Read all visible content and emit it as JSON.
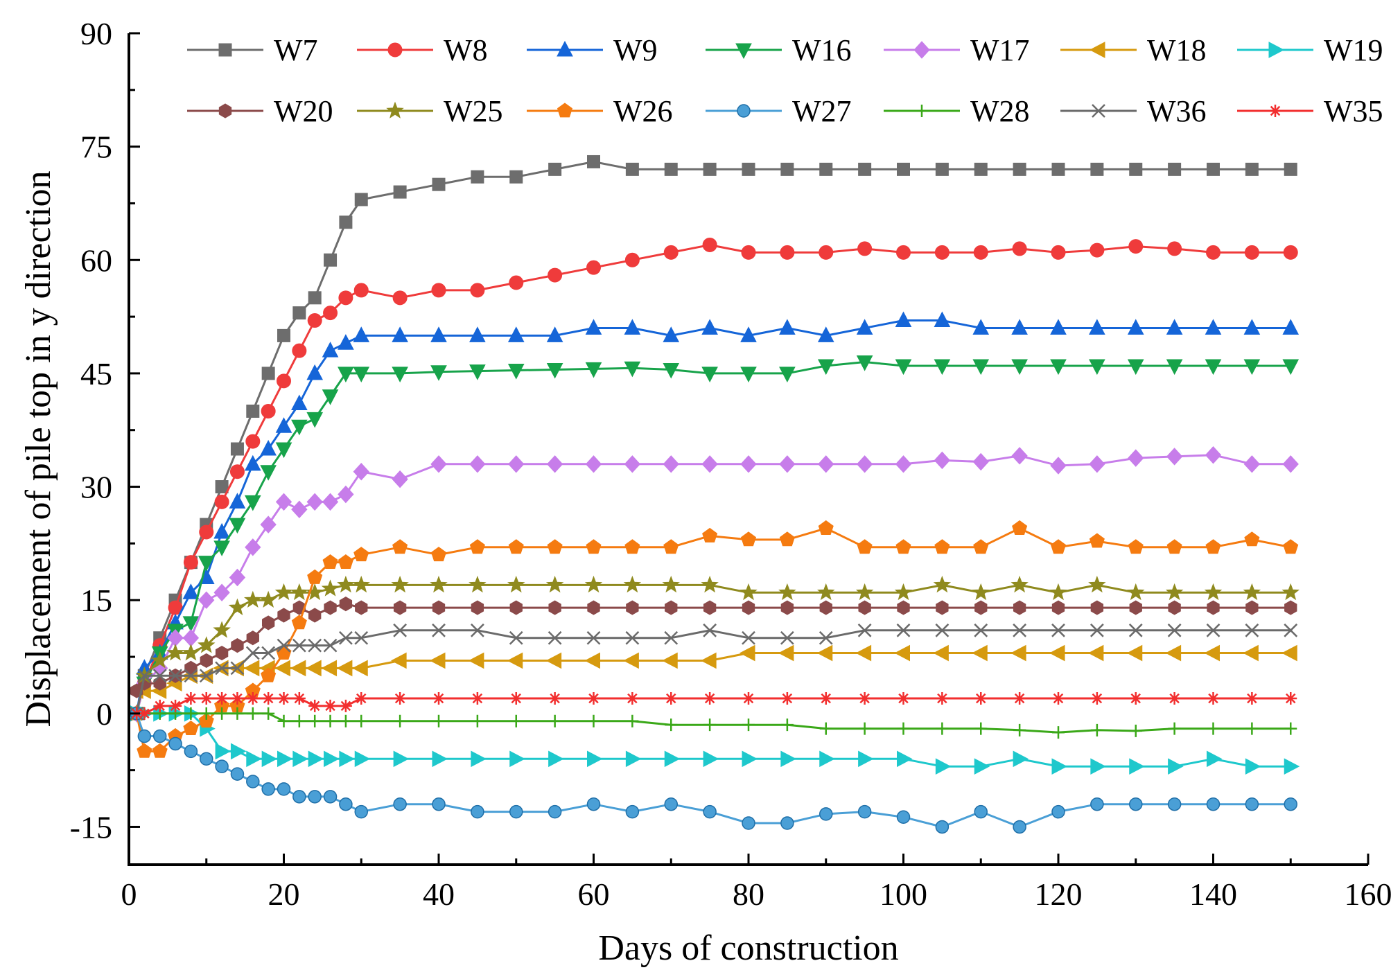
{
  "chart_data": {
    "type": "line",
    "title": "",
    "xlabel": "Days of construction",
    "ylabel": "Displacement of pile top in y direction",
    "xlim": [
      0,
      160
    ],
    "ylim": [
      -20,
      90
    ],
    "xticks": [
      0,
      20,
      40,
      60,
      80,
      100,
      120,
      140,
      160
    ],
    "yticks": [
      -15,
      0,
      15,
      30,
      45,
      60,
      75,
      90
    ],
    "xtick_labels": [
      "0",
      "20",
      "40",
      "60",
      "80",
      "100",
      "120",
      "140",
      "160"
    ],
    "ytick_labels": [
      "-15",
      "0",
      "15",
      "30",
      "45",
      "60",
      "75",
      "90"
    ],
    "grid": false,
    "legend_position": "top",
    "series": [
      {
        "name": "W7",
        "color": "#6d6d6d",
        "marker": "square",
        "x": [
          1,
          2,
          4,
          6,
          8,
          10,
          12,
          14,
          16,
          18,
          20,
          22,
          24,
          26,
          28,
          30,
          35,
          40,
          45,
          50,
          55,
          60,
          65,
          70,
          75,
          80,
          85,
          90,
          95,
          100,
          105,
          110,
          115,
          120,
          125,
          130,
          135,
          140,
          145,
          150
        ],
        "y": [
          0,
          5,
          10,
          15,
          20,
          25,
          30,
          35,
          40,
          45,
          50,
          53,
          55,
          60,
          65,
          68,
          69,
          70,
          71,
          71,
          72,
          73,
          72,
          72,
          72,
          72,
          72,
          72,
          72,
          72,
          72,
          72,
          72,
          72,
          72,
          72,
          72,
          72,
          72,
          72
        ]
      },
      {
        "name": "W8",
        "color": "#ef3b3b",
        "marker": "circle",
        "x": [
          1,
          2,
          4,
          6,
          8,
          10,
          12,
          14,
          16,
          18,
          20,
          22,
          24,
          26,
          28,
          30,
          35,
          40,
          45,
          50,
          55,
          60,
          65,
          70,
          75,
          80,
          85,
          90,
          95,
          100,
          105,
          110,
          115,
          120,
          125,
          130,
          135,
          140,
          145,
          150
        ],
        "y": [
          0,
          4,
          9,
          14,
          20,
          24,
          28,
          32,
          36,
          40,
          44,
          48,
          52,
          53,
          55,
          56,
          55,
          56,
          56,
          57,
          58,
          59,
          60,
          61,
          62,
          61,
          61,
          61,
          61.5,
          61,
          61,
          61,
          61.5,
          61,
          61.3,
          61.8,
          61.5,
          61,
          61,
          61
        ]
      },
      {
        "name": "W9",
        "color": "#1565d8",
        "marker": "triangle-up",
        "x": [
          1,
          2,
          4,
          6,
          8,
          10,
          12,
          14,
          16,
          18,
          20,
          22,
          24,
          26,
          28,
          30,
          35,
          40,
          45,
          50,
          55,
          60,
          65,
          70,
          75,
          80,
          85,
          90,
          95,
          100,
          105,
          110,
          115,
          120,
          125,
          130,
          135,
          140,
          145,
          150
        ],
        "y": [
          0,
          6,
          8,
          12,
          16,
          18,
          24,
          28,
          33,
          35,
          38,
          41,
          45,
          48,
          49,
          50,
          50,
          50,
          50,
          50,
          50,
          51,
          51,
          50,
          51,
          50,
          51,
          50,
          51,
          52,
          52,
          51,
          51,
          51,
          51,
          51,
          51,
          51,
          51,
          51
        ]
      },
      {
        "name": "W16",
        "color": "#17a34a",
        "marker": "triangle-down",
        "x": [
          1,
          2,
          4,
          6,
          8,
          10,
          12,
          14,
          16,
          18,
          20,
          22,
          24,
          26,
          28,
          30,
          35,
          40,
          45,
          50,
          55,
          60,
          65,
          70,
          75,
          80,
          85,
          90,
          95,
          100,
          105,
          110,
          115,
          120,
          125,
          130,
          135,
          140,
          145,
          150
        ],
        "y": [
          0,
          4,
          8,
          11,
          12,
          20,
          22,
          25,
          28,
          32,
          35,
          38,
          39,
          42,
          45,
          45,
          45,
          45.2,
          45.3,
          45.4,
          45.5,
          45.6,
          45.7,
          45.5,
          45,
          45,
          45,
          46,
          46.5,
          46,
          46,
          46,
          46,
          46,
          46,
          46,
          46,
          46,
          46,
          46
        ]
      },
      {
        "name": "W17",
        "color": "#c77dea",
        "marker": "diamond",
        "x": [
          1,
          2,
          4,
          6,
          8,
          10,
          12,
          14,
          16,
          18,
          20,
          22,
          24,
          26,
          28,
          30,
          35,
          40,
          45,
          50,
          55,
          60,
          65,
          70,
          75,
          80,
          85,
          90,
          95,
          100,
          105,
          110,
          115,
          120,
          125,
          130,
          135,
          140,
          145,
          150
        ],
        "y": [
          0,
          4,
          6,
          10,
          10,
          15,
          16,
          18,
          22,
          25,
          28,
          27,
          28,
          28,
          29,
          32,
          31,
          33,
          33,
          33,
          33,
          33,
          33,
          33,
          33,
          33,
          33,
          33,
          33,
          33,
          33.5,
          33.3,
          34.1,
          32.8,
          33,
          33.8,
          34,
          34.2,
          33,
          33
        ]
      },
      {
        "name": "W18",
        "color": "#d69a0f",
        "marker": "triangle-left",
        "x": [
          1,
          2,
          4,
          6,
          8,
          10,
          12,
          14,
          16,
          18,
          20,
          22,
          24,
          26,
          28,
          30,
          35,
          40,
          45,
          50,
          55,
          60,
          65,
          70,
          75,
          80,
          85,
          90,
          95,
          100,
          105,
          110,
          115,
          120,
          125,
          130,
          135,
          140,
          145,
          150
        ],
        "y": [
          3,
          3,
          3,
          4,
          5,
          5,
          6,
          6,
          6,
          6,
          6,
          6,
          6,
          6,
          6,
          6,
          7,
          7,
          7,
          7,
          7,
          7,
          7,
          7,
          7,
          8,
          8,
          8,
          8,
          8,
          8,
          8,
          8,
          8,
          8,
          8,
          8,
          8,
          8,
          8
        ]
      },
      {
        "name": "W19",
        "color": "#1ec8cc",
        "marker": "triangle-right",
        "x": [
          1,
          2,
          4,
          6,
          8,
          10,
          12,
          14,
          16,
          18,
          20,
          22,
          24,
          26,
          28,
          30,
          35,
          40,
          45,
          50,
          55,
          60,
          65,
          70,
          75,
          80,
          85,
          90,
          95,
          100,
          105,
          110,
          115,
          120,
          125,
          130,
          135,
          140,
          145,
          150
        ],
        "y": [
          0,
          0,
          0,
          0,
          0,
          -2,
          -5,
          -5,
          -6,
          -6,
          -6,
          -6,
          -6,
          -6,
          -6,
          -6,
          -6,
          -6,
          -6,
          -6,
          -6,
          -6,
          -6,
          -6,
          -6,
          -6,
          -6,
          -6,
          -6,
          -6,
          -7,
          -7,
          -6,
          -7,
          -7,
          -7,
          -7,
          -6,
          -7,
          -7
        ]
      },
      {
        "name": "W20",
        "color": "#8b4a4a",
        "marker": "hexagon",
        "x": [
          1,
          2,
          4,
          6,
          8,
          10,
          12,
          14,
          16,
          18,
          20,
          22,
          24,
          26,
          28,
          30,
          35,
          40,
          45,
          50,
          55,
          60,
          65,
          70,
          75,
          80,
          85,
          90,
          95,
          100,
          105,
          110,
          115,
          120,
          125,
          130,
          135,
          140,
          145,
          150
        ],
        "y": [
          3,
          4,
          4,
          5,
          6,
          7,
          8,
          9,
          10,
          12,
          13,
          14,
          13,
          14,
          14.5,
          14,
          14,
          14,
          14,
          14,
          14,
          14,
          14,
          14,
          14,
          14,
          14,
          14,
          14,
          14,
          14,
          14,
          14,
          14,
          14,
          14,
          14,
          14,
          14,
          14
        ]
      },
      {
        "name": "W25",
        "color": "#8f8a1e",
        "marker": "star",
        "x": [
          1,
          2,
          4,
          6,
          8,
          10,
          12,
          14,
          16,
          18,
          20,
          22,
          24,
          26,
          28,
          30,
          35,
          40,
          45,
          50,
          55,
          60,
          65,
          70,
          75,
          80,
          85,
          90,
          95,
          100,
          105,
          110,
          115,
          120,
          125,
          130,
          135,
          140,
          145,
          150
        ],
        "y": [
          0,
          5,
          7,
          8,
          8,
          9,
          11,
          14,
          15,
          15,
          16,
          16,
          16,
          16.5,
          17,
          17,
          17,
          17,
          17,
          17,
          17,
          17,
          17,
          17,
          17,
          16,
          16,
          16,
          16,
          16,
          17,
          16,
          17,
          16,
          17,
          16,
          16,
          16,
          16,
          16
        ]
      },
      {
        "name": "W26",
        "color": "#f57b10",
        "marker": "pentagon",
        "x": [
          1,
          2,
          4,
          6,
          8,
          10,
          12,
          14,
          16,
          18,
          20,
          22,
          24,
          26,
          28,
          30,
          35,
          40,
          45,
          50,
          55,
          60,
          65,
          70,
          75,
          80,
          85,
          90,
          95,
          100,
          105,
          110,
          115,
          120,
          125,
          130,
          135,
          140,
          145,
          150
        ],
        "y": [
          0,
          -5,
          -5,
          -3,
          -2,
          -1,
          1,
          1,
          3,
          5,
          8,
          12,
          18,
          20,
          20,
          21,
          22,
          21,
          22,
          22,
          22,
          22,
          22,
          22,
          23.5,
          23,
          23,
          24.5,
          22,
          22,
          22,
          22,
          24.5,
          22,
          22.8,
          22,
          22,
          22,
          23,
          22
        ]
      },
      {
        "name": "W27",
        "color": "#4a9fd6",
        "marker": "sphere",
        "x": [
          1,
          2,
          4,
          6,
          8,
          10,
          12,
          14,
          16,
          18,
          20,
          22,
          24,
          26,
          28,
          30,
          35,
          40,
          45,
          50,
          55,
          60,
          65,
          70,
          75,
          80,
          85,
          90,
          95,
          100,
          105,
          110,
          115,
          120,
          125,
          130,
          135,
          140,
          145,
          150
        ],
        "y": [
          0,
          -3,
          -3,
          -4,
          -5,
          -6,
          -7,
          -8,
          -9,
          -10,
          -10,
          -11,
          -11,
          -11,
          -12,
          -13,
          -12,
          -12,
          -13,
          -13,
          -13,
          -12,
          -13,
          -12,
          -13,
          -14.5,
          -14.5,
          -13.3,
          -13,
          -13.7,
          -15,
          -13,
          -15,
          -13,
          -12,
          -12,
          -12,
          -12,
          -12,
          -12
        ]
      },
      {
        "name": "W28",
        "color": "#3aa818",
        "marker": "plus",
        "x": [
          1,
          2,
          4,
          6,
          8,
          10,
          12,
          14,
          16,
          18,
          20,
          22,
          24,
          26,
          28,
          30,
          35,
          40,
          45,
          50,
          55,
          60,
          65,
          70,
          75,
          80,
          85,
          90,
          95,
          100,
          105,
          110,
          115,
          120,
          125,
          130,
          135,
          140,
          145,
          150
        ],
        "y": [
          0,
          0,
          0,
          0,
          0,
          0,
          0,
          0,
          0,
          0,
          -1,
          -1,
          -1,
          -1,
          -1,
          -1,
          -1,
          -1,
          -1,
          -1,
          -1,
          -1,
          -1,
          -1.5,
          -1.5,
          -1.5,
          -1.5,
          -2,
          -2,
          -2,
          -2,
          -2,
          -2.2,
          -2.5,
          -2.2,
          -2.3,
          -2,
          -2,
          -2,
          -2
        ]
      },
      {
        "name": "W36",
        "color": "#6a6a6a",
        "marker": "x",
        "x": [
          1,
          2,
          4,
          6,
          8,
          10,
          12,
          14,
          16,
          18,
          20,
          22,
          24,
          26,
          28,
          30,
          35,
          40,
          45,
          50,
          55,
          60,
          65,
          70,
          75,
          80,
          85,
          90,
          95,
          100,
          105,
          110,
          115,
          120,
          125,
          130,
          135,
          140,
          145,
          150
        ],
        "y": [
          0,
          5,
          5,
          5,
          5,
          5,
          6,
          6,
          8,
          8,
          9,
          9,
          9,
          9,
          10,
          10,
          11,
          11,
          11,
          10,
          10,
          10,
          10,
          10,
          11,
          10,
          10,
          10,
          11,
          11,
          11,
          11,
          11,
          11,
          11,
          11,
          11,
          11,
          11,
          11
        ]
      },
      {
        "name": "W35",
        "color": "#f22e2e",
        "marker": "asterisk",
        "x": [
          1,
          2,
          4,
          6,
          8,
          10,
          12,
          14,
          16,
          18,
          20,
          22,
          24,
          26,
          28,
          30,
          35,
          40,
          45,
          50,
          55,
          60,
          65,
          70,
          75,
          80,
          85,
          90,
          95,
          100,
          105,
          110,
          115,
          120,
          125,
          130,
          135,
          140,
          145,
          150
        ],
        "y": [
          0,
          0,
          1,
          1,
          2,
          2,
          2,
          2,
          2,
          2,
          2,
          2,
          1,
          1,
          1,
          2,
          2,
          2,
          2,
          2,
          2,
          2,
          2,
          2,
          2,
          2,
          2,
          2,
          2,
          2,
          2,
          2,
          2,
          2,
          2,
          2,
          2,
          2,
          2,
          2
        ]
      }
    ]
  }
}
